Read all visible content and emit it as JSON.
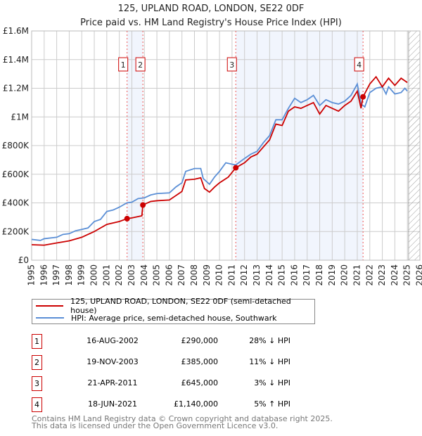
{
  "chart_data": {
    "type": "line",
    "title": "125, UPLAND ROAD, LONDON, SE22 0DF",
    "subtitle": "Price paid vs. HM Land Registry's House Price Index (HPI)",
    "xlim": [
      1995,
      2026
    ],
    "ylim": [
      0,
      1600000
    ],
    "x_ticks": [
      "1995",
      "1996",
      "1997",
      "1998",
      "1999",
      "2000",
      "2001",
      "2002",
      "2003",
      "2004",
      "2005",
      "2006",
      "2007",
      "2008",
      "2009",
      "2010",
      "2011",
      "2012",
      "2013",
      "2014",
      "2015",
      "2016",
      "2017",
      "2018",
      "2019",
      "2020",
      "2021",
      "2022",
      "2023",
      "2024",
      "2025",
      "2026"
    ],
    "y_ticks": [
      {
        "v": 0,
        "label": "£0"
      },
      {
        "v": 200000,
        "label": "£200K"
      },
      {
        "v": 400000,
        "label": "£400K"
      },
      {
        "v": 600000,
        "label": "£600K"
      },
      {
        "v": 800000,
        "label": "£800K"
      },
      {
        "v": 1000000,
        "label": "£1M"
      },
      {
        "v": 1200000,
        "label": "£1.2M"
      },
      {
        "v": 1400000,
        "label": "£1.4M"
      },
      {
        "v": 1600000,
        "label": "£1.6M"
      }
    ],
    "grid": true,
    "series": [
      {
        "name": "125, UPLAND ROAD, LONDON, SE22 0DF (semi-detached house)",
        "color": "#cc0000",
        "x": [
          1995,
          1996,
          1997,
          1998,
          1999,
          2000,
          2001,
          2002,
          2002.62,
          2003,
          2003.8,
          2003.88,
          2004.5,
          2005,
          2006,
          2006.5,
          2007,
          2007.3,
          2008,
          2008.5,
          2008.8,
          2009.2,
          2009.6,
          2010,
          2010.7,
          2011.3,
          2012,
          2012.5,
          2013,
          2013.5,
          2014,
          2014.5,
          2015,
          2015.5,
          2016,
          2016.5,
          2017,
          2017.5,
          2018,
          2018.5,
          2019,
          2019.5,
          2020,
          2020.5,
          2021,
          2021.3,
          2021.46,
          2022,
          2022.5,
          2023,
          2023.5,
          2024,
          2024.5,
          2025
        ],
        "y": [
          108000,
          105000,
          120000,
          135000,
          160000,
          200000,
          250000,
          270000,
          290000,
          295000,
          310000,
          385000,
          410000,
          415000,
          420000,
          450000,
          480000,
          560000,
          565000,
          575000,
          500000,
          475000,
          510000,
          540000,
          580000,
          645000,
          680000,
          720000,
          740000,
          790000,
          840000,
          950000,
          940000,
          1040000,
          1070000,
          1060000,
          1080000,
          1100000,
          1020000,
          1080000,
          1060000,
          1040000,
          1080000,
          1110000,
          1180000,
          1060000,
          1140000,
          1230000,
          1280000,
          1210000,
          1270000,
          1220000,
          1270000,
          1240000
        ]
      },
      {
        "name": "HPI: Average price, semi-detached house, Southwark",
        "color": "#5b8fd6",
        "x": [
          1995,
          1995.7,
          1996,
          1997,
          1997.5,
          1998,
          1998.5,
          1999,
          1999.5,
          2000,
          2000.5,
          2001,
          2001.5,
          2002,
          2002.6,
          2003,
          2003.5,
          2004,
          2004.5,
          2005,
          2006,
          2006.5,
          2007,
          2007.3,
          2008,
          2008.5,
          2008.7,
          2009.2,
          2009.6,
          2010,
          2010.5,
          2011,
          2011.3,
          2012,
          2012.5,
          2013,
          2013.5,
          2014,
          2014.5,
          2015,
          2015.5,
          2016,
          2016.5,
          2017,
          2017.5,
          2018,
          2018.5,
          2019,
          2019.5,
          2020,
          2020.5,
          2021,
          2021.3,
          2021.6,
          2022,
          2022.5,
          2023,
          2023.3,
          2023.5,
          2024,
          2024.5,
          2024.8,
          2025
        ],
        "y": [
          145000,
          138000,
          150000,
          160000,
          180000,
          185000,
          205000,
          215000,
          225000,
          270000,
          285000,
          340000,
          350000,
          370000,
          400000,
          405000,
          430000,
          435000,
          455000,
          465000,
          470000,
          510000,
          540000,
          620000,
          640000,
          640000,
          570000,
          530000,
          580000,
          620000,
          680000,
          670000,
          665000,
          710000,
          740000,
          760000,
          820000,
          870000,
          980000,
          980000,
          1060000,
          1130000,
          1100000,
          1120000,
          1150000,
          1080000,
          1120000,
          1100000,
          1090000,
          1110000,
          1150000,
          1230000,
          1090000,
          1070000,
          1170000,
          1200000,
          1210000,
          1160000,
          1210000,
          1160000,
          1170000,
          1200000,
          1180000
        ]
      }
    ],
    "sales": [
      {
        "n": "1",
        "x": 2002.62,
        "price": 290000,
        "date": "16-AUG-2002",
        "price_label": "£290,000",
        "hpi": "28% ↓ HPI"
      },
      {
        "n": "2",
        "x": 2003.88,
        "price": 385000,
        "date": "19-NOV-2003",
        "price_label": "£385,000",
        "hpi": "11% ↓ HPI"
      },
      {
        "n": "3",
        "x": 2011.3,
        "price": 645000,
        "date": "21-APR-2011",
        "price_label": "£645,000",
        "hpi": "3% ↓ HPI"
      },
      {
        "n": "4",
        "x": 2021.46,
        "price": 1140000,
        "date": "18-JUN-2021",
        "price_label": "£1,140,000",
        "hpi": "5% ↑ HPI"
      }
    ],
    "shaded_ranges": [
      [
        2002.62,
        2003.88
      ],
      [
        2011.3,
        2021.46
      ]
    ],
    "forecast_hatch_from": 2025.1,
    "legend": "below"
  },
  "footer": {
    "line1": "Contains HM Land Registry data © Crown copyright and database right 2025.",
    "line2": "This data is licensed under the Open Government Licence v3.0."
  }
}
